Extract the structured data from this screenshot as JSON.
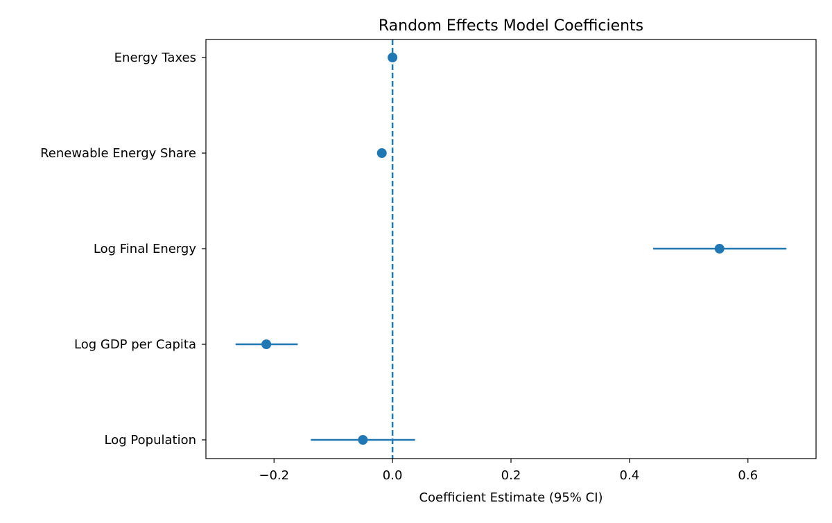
{
  "chart_data": {
    "type": "scatter",
    "title": "Random Effects Model Coefficients",
    "xlabel": "Coefficient Estimate (95% CI)",
    "ylabel": "",
    "xlim": [
      -0.315,
      0.715
    ],
    "xticks": [
      -0.2,
      0.0,
      0.2,
      0.4,
      0.6
    ],
    "xtick_labels": [
      "−0.2",
      "0.0",
      "0.2",
      "0.4",
      "0.6"
    ],
    "reference_line": {
      "x": 0.0,
      "style": "dashed"
    },
    "categories": [
      "Energy Taxes",
      "Renewable Energy Share",
      "Log Final Energy",
      "Log GDP per Capita",
      "Log Population"
    ],
    "series": [
      {
        "estimates": [
          0.0,
          -0.018,
          0.552,
          -0.213,
          -0.05
        ],
        "ci_lower": [
          0.0,
          -0.018,
          0.44,
          -0.265,
          -0.138
        ],
        "ci_upper": [
          0.0,
          -0.018,
          0.665,
          -0.16,
          0.038
        ]
      }
    ],
    "grid": false,
    "color": "#1f77b4"
  }
}
